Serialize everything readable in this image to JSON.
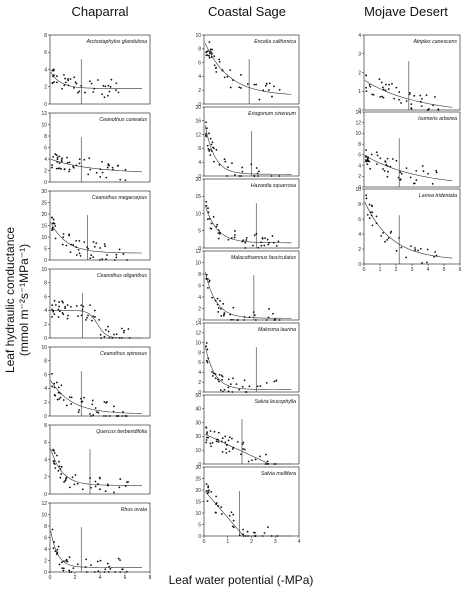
{
  "figure": {
    "column_titles": [
      "Chaparral",
      "Coastal Sage",
      "Mojave Desert"
    ],
    "xlabel": "Leaf water potential (-MPa)",
    "ylabel_main": "Leaf hydraulic conductance",
    "ylabel_units": "(mmol m⁻²s⁻¹MPa⁻¹)"
  },
  "chart_data": [
    {
      "type": "scatter",
      "column": "Chaparral",
      "species": "Arctostaphylos glandulosa",
      "xlim": [
        0,
        8
      ],
      "ylim": [
        0,
        8
      ],
      "yticks": [
        0,
        2,
        4,
        6,
        8
      ],
      "xticks": [],
      "threshold": 2.5,
      "fit": {
        "a": 2.0,
        "k": 1.2,
        "c": 1.8
      },
      "n": 45,
      "seed": 11
    },
    {
      "type": "scatter",
      "column": "Chaparral",
      "species": "Ceanothus cuneatus",
      "xlim": [
        0,
        8
      ],
      "ylim": [
        0,
        12
      ],
      "yticks": [
        0,
        2,
        4,
        6,
        8,
        10,
        12
      ],
      "xticks": [],
      "threshold": 2.5,
      "fit": {
        "a": 2.5,
        "k": 0.3,
        "c": 1.5
      },
      "n": 50,
      "seed": 12
    },
    {
      "type": "scatter",
      "column": "Chaparral",
      "species": "Ceanothus megacarpus",
      "xlim": [
        0,
        8
      ],
      "ylim": [
        0,
        30
      ],
      "yticks": [
        0,
        5,
        10,
        15,
        20,
        25,
        30
      ],
      "xticks": [],
      "threshold": 3.0,
      "fit": {
        "a": 14,
        "k": 0.8,
        "c": 3
      },
      "n": 50,
      "seed": 13
    },
    {
      "type": "scatter",
      "column": "Chaparral",
      "species": "Ceanothus oliganthus",
      "xlim": [
        0,
        8
      ],
      "ylim": [
        0,
        10
      ],
      "yticks": [
        0,
        2,
        4,
        6,
        8,
        10
      ],
      "xticks": [],
      "threshold": 2.6,
      "fit": {
        "type": "sigmoid",
        "top": 4,
        "mid": 3.8,
        "s": 0.35
      },
      "n": 55,
      "seed": 14
    },
    {
      "type": "scatter",
      "column": "Chaparral",
      "species": "Ceanothus spinosus",
      "xlim": [
        0,
        8
      ],
      "ylim": [
        0,
        10
      ],
      "yticks": [
        0,
        2,
        4,
        6,
        8,
        10
      ],
      "xticks": [],
      "threshold": 2.5,
      "fit": {
        "a": 5,
        "k": 0.6,
        "c": 0.3
      },
      "n": 50,
      "seed": 15
    },
    {
      "type": "scatter",
      "column": "Chaparral",
      "species": "Quercus berberidifolia",
      "xlim": [
        0,
        8
      ],
      "ylim": [
        0,
        8
      ],
      "yticks": [
        0,
        2,
        4,
        6,
        8
      ],
      "xticks": [],
      "threshold": 3.2,
      "fit": {
        "a": 4.5,
        "k": 1.1,
        "c": 1.0
      },
      "n": 45,
      "seed": 16
    },
    {
      "type": "scatter",
      "column": "Chaparral",
      "species": "Rhus ovata",
      "xlim": [
        0,
        8
      ],
      "ylim": [
        0,
        12
      ],
      "yticks": [
        0,
        2,
        4,
        6,
        8,
        10,
        12
      ],
      "xticks": [
        0,
        2,
        4,
        6,
        8
      ],
      "threshold": 2.5,
      "fit": {
        "a": 7,
        "k": 1.8,
        "c": 0.8
      },
      "n": 45,
      "seed": 17
    },
    {
      "type": "scatter",
      "column": "Coastal Sage",
      "species": "Encelia californica",
      "xlim": [
        0,
        4
      ],
      "ylim": [
        0,
        10
      ],
      "yticks": [
        0,
        2,
        4,
        6,
        8,
        10
      ],
      "xticks": [],
      "threshold": 1.9,
      "fit": {
        "a": 8,
        "k": 1.0,
        "c": 1.2
      },
      "n": 45,
      "seed": 21
    },
    {
      "type": "scatter",
      "column": "Coastal Sage",
      "species": "Eriogonum cinereum",
      "xlim": [
        0,
        4
      ],
      "ylim": [
        0,
        20
      ],
      "yticks": [
        0,
        4,
        8,
        12,
        16,
        20
      ],
      "xticks": [],
      "threshold": 2.0,
      "fit": {
        "a": 16,
        "k": 2.5,
        "c": 0.5
      },
      "n": 40,
      "seed": 22
    },
    {
      "type": "scatter",
      "column": "Coastal Sage",
      "species": "Hazardia squarrosa",
      "xlim": [
        0,
        4
      ],
      "ylim": [
        0,
        20
      ],
      "yticks": [
        0,
        5,
        10,
        15,
        20
      ],
      "xticks": [],
      "threshold": 2.2,
      "fit": {
        "a": 12,
        "k": 2.0,
        "c": 1.5
      },
      "n": 45,
      "seed": 23
    },
    {
      "type": "scatter",
      "column": "Coastal Sage",
      "species": "Malacothamnus fasciculatus",
      "xlim": [
        0,
        4
      ],
      "ylim": [
        0,
        12
      ],
      "yticks": [
        0,
        2,
        4,
        6,
        8,
        10,
        12
      ],
      "xticks": [],
      "threshold": 2.1,
      "fit": {
        "a": 9,
        "k": 2.2,
        "c": 0.3
      },
      "n": 40,
      "seed": 24
    },
    {
      "type": "scatter",
      "column": "Coastal Sage",
      "species": "Malosma laurina",
      "xlim": [
        0,
        4
      ],
      "ylim": [
        0,
        14
      ],
      "yticks": [
        0,
        2,
        4,
        6,
        8,
        10,
        12,
        14
      ],
      "xticks": [],
      "threshold": 2.2,
      "fit": {
        "a": 10,
        "k": 2.5,
        "c": 0.5
      },
      "n": 40,
      "seed": 25
    },
    {
      "type": "scatter",
      "column": "Coastal Sage",
      "species": "Salvia leucophylla",
      "xlim": [
        0,
        4
      ],
      "ylim": [
        0,
        50
      ],
      "yticks": [
        0,
        10,
        20,
        30,
        40,
        50
      ],
      "xticks": [],
      "threshold": 1.6,
      "fit": {
        "type": "linear",
        "b0": 22,
        "b1": -8
      },
      "n": 50,
      "seed": 26
    },
    {
      "type": "scatter",
      "column": "Coastal Sage",
      "species": "Salvia mellifera",
      "xlim": [
        0,
        4
      ],
      "ylim": [
        0,
        30
      ],
      "yticks": [
        0,
        5,
        10,
        15,
        20,
        25,
        30
      ],
      "xticks": [
        0,
        1,
        2,
        3,
        4
      ],
      "threshold": 1.5,
      "fit": {
        "type": "linear",
        "b0": 20,
        "b1": -12
      },
      "n": 40,
      "seed": 27
    },
    {
      "type": "scatter",
      "column": "Mojave Desert",
      "species": "Atriplex canescens",
      "xlim": [
        0,
        6
      ],
      "ylim": [
        0,
        4
      ],
      "yticks": [
        0,
        1,
        2,
        3,
        4
      ],
      "xticks": [],
      "threshold": 2.8,
      "fit": {
        "a": 1.8,
        "k": 0.3,
        "c": -0.2
      },
      "n": 45,
      "seed": 31
    },
    {
      "type": "scatter",
      "column": "Mojave Desert",
      "species": "Isomeris arborea",
      "xlim": [
        0,
        6
      ],
      "ylim": [
        0,
        14
      ],
      "yticks": [
        0,
        2,
        4,
        6,
        8,
        10,
        12,
        14
      ],
      "xticks": [],
      "threshold": 2.2,
      "fit": {
        "a": 6,
        "k": 0.3,
        "c": 0
      },
      "n": 50,
      "seed": 32
    },
    {
      "type": "scatter",
      "column": "Mojave Desert",
      "species": "Larrea tridentata",
      "xlim": [
        0,
        6
      ],
      "ylim": [
        0,
        10
      ],
      "yticks": [
        0,
        2,
        4,
        6,
        8,
        10
      ],
      "xticks": [
        0,
        1,
        2,
        3,
        4,
        5,
        6
      ],
      "threshold": 2.2,
      "fit": {
        "a": 8,
        "k": 0.6,
        "c": 0.5
      },
      "n": 35,
      "seed": 33
    }
  ]
}
